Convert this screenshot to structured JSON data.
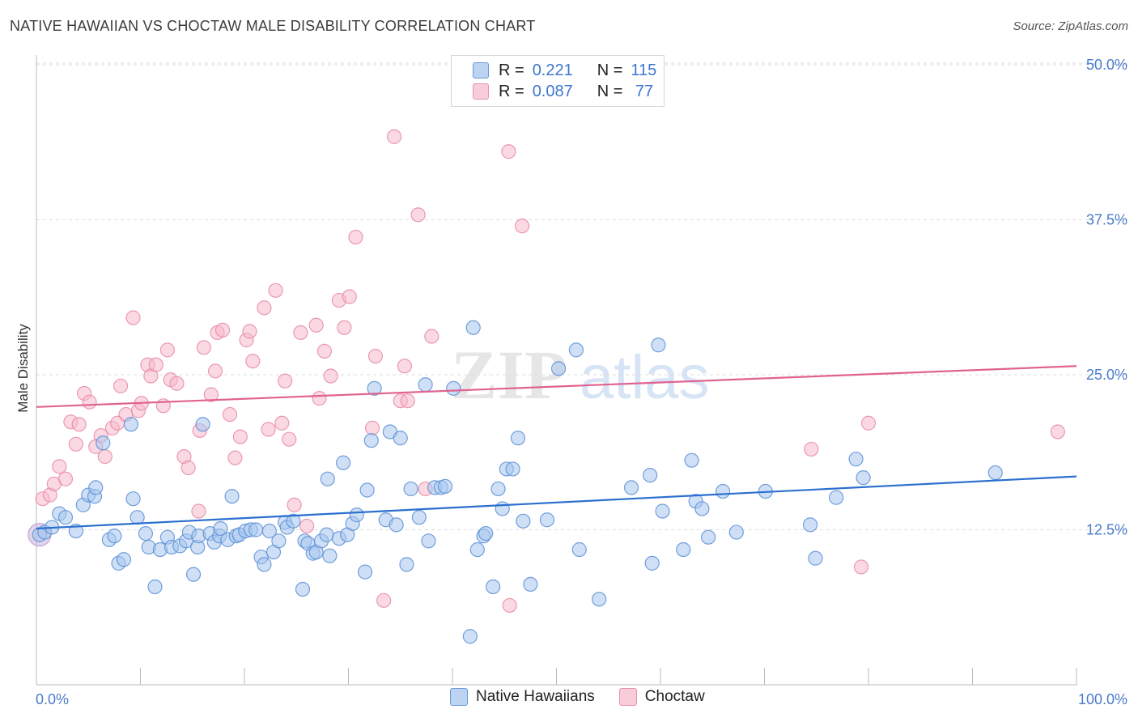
{
  "title": "NATIVE HAWAIIAN VS CHOCTAW MALE DISABILITY CORRELATION CHART",
  "source": "Source: ZipAtlas.com",
  "watermark": {
    "zip": "ZIP",
    "atlas": "atlas"
  },
  "legend": {
    "rows": [
      {
        "r_label": "R =",
        "r_value": "0.221",
        "n_label": "N =",
        "n_value": "115"
      },
      {
        "r_label": "R =",
        "r_value": "0.087",
        "n_label": "N =",
        "n_value": " 77"
      }
    ]
  },
  "bottom_legend": [
    "Native Hawaiians",
    "Choctaw"
  ],
  "colors": {
    "blue_fill": "#a8c6ee",
    "blue_stroke": "#5a8fd6",
    "blue_line": "#2b6fcf",
    "pink_fill": "#f6b9cb",
    "pink_stroke": "#e88aa6",
    "pink_line": "#e0638f",
    "grid": "#dddddd",
    "tick_text": "#4a7cc9"
  },
  "chart_data": {
    "type": "scatter",
    "title": "NATIVE HAWAIIAN VS CHOCTAW MALE DISABILITY CORRELATION CHART",
    "xlabel": "",
    "ylabel": "Male Disability",
    "xlim": [
      0,
      100
    ],
    "ylim": [
      0,
      50
    ],
    "x_tick_labels": [
      "0.0%",
      "100.0%"
    ],
    "y_ticks": [
      12.5,
      25.0,
      37.5,
      50.0
    ],
    "y_tick_labels": [
      "12.5%",
      "25.0%",
      "37.5%",
      "50.0%"
    ],
    "grid": "horizontal dashed",
    "legend_position": "top-center",
    "series": [
      {
        "name": "Native Hawaiians",
        "R": 0.221,
        "N": 115,
        "trend": {
          "x": [
            0,
            100
          ],
          "y": [
            12.6,
            16.8
          ]
        },
        "points": [
          [
            0.3,
            12.1
          ],
          [
            0.8,
            12.3
          ],
          [
            1.5,
            12.7
          ],
          [
            2.2,
            13.8
          ],
          [
            2.8,
            13.5
          ],
          [
            3.8,
            12.4
          ],
          [
            4.5,
            14.5
          ],
          [
            5.0,
            15.3
          ],
          [
            5.6,
            15.2
          ],
          [
            5.7,
            15.9
          ],
          [
            6.4,
            19.5
          ],
          [
            7.0,
            11.7
          ],
          [
            7.5,
            12.0
          ],
          [
            7.9,
            9.8
          ],
          [
            8.4,
            10.1
          ],
          [
            9.1,
            21.0
          ],
          [
            9.3,
            15.0
          ],
          [
            9.7,
            13.5
          ],
          [
            10.5,
            12.2
          ],
          [
            10.8,
            11.1
          ],
          [
            11.4,
            7.9
          ],
          [
            11.9,
            10.9
          ],
          [
            12.6,
            11.9
          ],
          [
            13.0,
            11.1
          ],
          [
            13.8,
            11.2
          ],
          [
            14.4,
            11.6
          ],
          [
            14.7,
            12.3
          ],
          [
            15.1,
            8.9
          ],
          [
            15.5,
            11.1
          ],
          [
            15.6,
            12.0
          ],
          [
            16.0,
            21.0
          ],
          [
            16.7,
            12.2
          ],
          [
            17.1,
            11.5
          ],
          [
            17.6,
            12.0
          ],
          [
            17.7,
            12.6
          ],
          [
            18.4,
            11.7
          ],
          [
            18.8,
            15.2
          ],
          [
            19.2,
            12.0
          ],
          [
            19.5,
            12.1
          ],
          [
            20.1,
            12.4
          ],
          [
            20.6,
            12.5
          ],
          [
            21.1,
            12.5
          ],
          [
            21.6,
            10.3
          ],
          [
            21.9,
            9.7
          ],
          [
            22.4,
            12.4
          ],
          [
            22.8,
            10.7
          ],
          [
            23.3,
            11.6
          ],
          [
            23.9,
            13.1
          ],
          [
            24.1,
            12.7
          ],
          [
            24.7,
            13.2
          ],
          [
            25.6,
            7.7
          ],
          [
            25.8,
            11.6
          ],
          [
            26.1,
            11.4
          ],
          [
            26.6,
            10.6
          ],
          [
            26.9,
            10.7
          ],
          [
            27.4,
            11.6
          ],
          [
            27.9,
            12.1
          ],
          [
            28.0,
            16.6
          ],
          [
            28.2,
            10.4
          ],
          [
            29.1,
            11.8
          ],
          [
            29.5,
            17.9
          ],
          [
            29.9,
            12.1
          ],
          [
            30.4,
            13.0
          ],
          [
            30.8,
            13.7
          ],
          [
            31.6,
            9.1
          ],
          [
            31.8,
            15.7
          ],
          [
            32.2,
            19.7
          ],
          [
            32.5,
            23.9
          ],
          [
            33.6,
            13.3
          ],
          [
            34.0,
            20.4
          ],
          [
            34.6,
            12.9
          ],
          [
            35.0,
            19.9
          ],
          [
            35.6,
            9.7
          ],
          [
            36.0,
            15.8
          ],
          [
            36.8,
            13.5
          ],
          [
            37.4,
            24.2
          ],
          [
            37.7,
            11.6
          ],
          [
            38.3,
            15.9
          ],
          [
            38.9,
            15.9
          ],
          [
            39.3,
            16.0
          ],
          [
            40.1,
            23.9
          ],
          [
            41.7,
            3.9
          ],
          [
            42.0,
            28.8
          ],
          [
            42.4,
            10.9
          ],
          [
            43.0,
            12.0
          ],
          [
            43.2,
            12.2
          ],
          [
            43.9,
            7.9
          ],
          [
            44.4,
            15.8
          ],
          [
            44.8,
            14.2
          ],
          [
            45.2,
            17.4
          ],
          [
            45.8,
            17.4
          ],
          [
            46.3,
            19.9
          ],
          [
            46.8,
            13.2
          ],
          [
            47.5,
            8.1
          ],
          [
            49.1,
            13.3
          ],
          [
            50.2,
            25.5
          ],
          [
            51.9,
            27.0
          ],
          [
            52.2,
            10.9
          ],
          [
            54.1,
            6.9
          ],
          [
            57.2,
            15.9
          ],
          [
            59.0,
            16.9
          ],
          [
            59.2,
            9.8
          ],
          [
            59.8,
            27.4
          ],
          [
            60.2,
            14.0
          ],
          [
            62.2,
            10.9
          ],
          [
            63.0,
            18.1
          ],
          [
            63.4,
            14.8
          ],
          [
            64.0,
            14.2
          ],
          [
            64.6,
            11.9
          ],
          [
            66.0,
            15.6
          ],
          [
            67.3,
            12.3
          ],
          [
            70.1,
            15.6
          ],
          [
            74.4,
            12.9
          ],
          [
            74.9,
            10.2
          ],
          [
            76.9,
            15.1
          ],
          [
            78.8,
            18.2
          ],
          [
            79.5,
            16.7
          ],
          [
            92.2,
            17.1
          ]
        ]
      },
      {
        "name": "Choctaw",
        "R": 0.087,
        "N": 77,
        "trend": {
          "x": [
            0,
            100
          ],
          "y": [
            22.4,
            25.7
          ]
        },
        "points": [
          [
            0.6,
            15.0
          ],
          [
            1.3,
            15.3
          ],
          [
            1.7,
            16.2
          ],
          [
            2.2,
            17.6
          ],
          [
            2.8,
            16.6
          ],
          [
            3.3,
            21.2
          ],
          [
            3.8,
            19.4
          ],
          [
            4.1,
            21.0
          ],
          [
            4.6,
            23.5
          ],
          [
            5.1,
            22.8
          ],
          [
            5.7,
            19.2
          ],
          [
            6.2,
            20.1
          ],
          [
            6.6,
            18.4
          ],
          [
            7.3,
            20.7
          ],
          [
            7.8,
            21.1
          ],
          [
            8.1,
            24.1
          ],
          [
            8.6,
            21.8
          ],
          [
            9.3,
            29.6
          ],
          [
            9.8,
            22.1
          ],
          [
            10.1,
            22.7
          ],
          [
            10.7,
            25.8
          ],
          [
            11.0,
            24.9
          ],
          [
            11.5,
            25.8
          ],
          [
            12.2,
            22.5
          ],
          [
            12.6,
            27.0
          ],
          [
            12.9,
            24.6
          ],
          [
            13.5,
            24.3
          ],
          [
            14.2,
            18.4
          ],
          [
            14.6,
            17.5
          ],
          [
            15.6,
            14.0
          ],
          [
            15.7,
            20.5
          ],
          [
            16.1,
            27.2
          ],
          [
            16.8,
            23.4
          ],
          [
            17.2,
            25.3
          ],
          [
            17.4,
            28.4
          ],
          [
            17.9,
            28.6
          ],
          [
            18.6,
            21.8
          ],
          [
            19.1,
            18.3
          ],
          [
            19.6,
            20.0
          ],
          [
            20.2,
            27.8
          ],
          [
            20.5,
            28.5
          ],
          [
            20.8,
            26.1
          ],
          [
            21.9,
            30.4
          ],
          [
            22.3,
            20.6
          ],
          [
            23.0,
            31.8
          ],
          [
            23.6,
            21.1
          ],
          [
            23.9,
            24.5
          ],
          [
            24.3,
            19.8
          ],
          [
            24.8,
            14.5
          ],
          [
            25.4,
            28.4
          ],
          [
            26.0,
            12.8
          ],
          [
            26.9,
            29.0
          ],
          [
            27.2,
            23.1
          ],
          [
            27.7,
            26.9
          ],
          [
            28.3,
            24.9
          ],
          [
            29.1,
            31.0
          ],
          [
            29.6,
            28.8
          ],
          [
            30.1,
            31.3
          ],
          [
            30.7,
            36.1
          ],
          [
            32.3,
            20.7
          ],
          [
            32.6,
            26.5
          ],
          [
            33.4,
            6.8
          ],
          [
            34.4,
            44.2
          ],
          [
            35.0,
            22.9
          ],
          [
            35.4,
            25.7
          ],
          [
            35.7,
            22.9
          ],
          [
            36.7,
            37.9
          ],
          [
            37.4,
            15.8
          ],
          [
            38.0,
            28.1
          ],
          [
            45.4,
            43.0
          ],
          [
            45.5,
            6.4
          ],
          [
            46.7,
            37.0
          ],
          [
            74.5,
            19.0
          ],
          [
            79.3,
            9.5
          ],
          [
            80.0,
            21.1
          ],
          [
            98.2,
            20.4
          ]
        ]
      }
    ]
  }
}
